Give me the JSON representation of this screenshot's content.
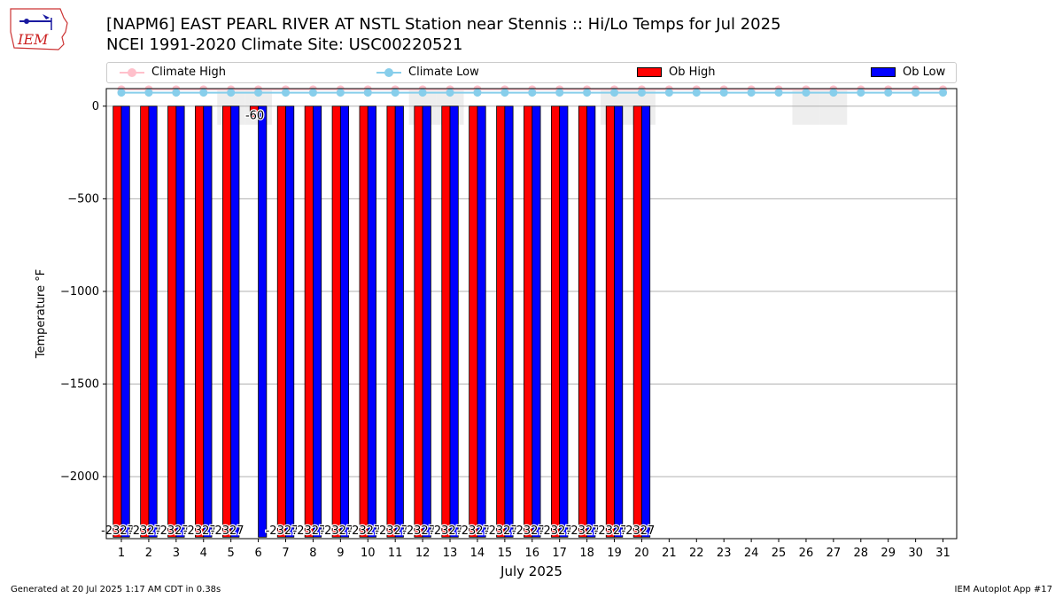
{
  "header": {
    "title_line1": "[NAPM6] EAST PEARL RIVER  AT NSTL Station near Stennis :: Hi/Lo Temps for Jul 2025",
    "title_line2": "NCEI 1991-2020 Climate Site: USC00220521",
    "logo_text": "IEM"
  },
  "legend": {
    "items": [
      {
        "label": "Climate High",
        "color": "#ffc0cb",
        "kind": "line"
      },
      {
        "label": "Climate Low",
        "color": "#87ceeb",
        "kind": "line"
      },
      {
        "label": "Ob High",
        "color": "#ff0000",
        "kind": "box"
      },
      {
        "label": "Ob Low",
        "color": "#0000ff",
        "kind": "box"
      }
    ]
  },
  "footer": {
    "left": "Generated at 20 Jul 2025 1:17 AM CDT in 0.38s",
    "right": "IEM Autoplot App #17"
  },
  "chart_data": {
    "type": "bar",
    "xlabel": "July 2025",
    "ylabel": "Temperature °F",
    "ylim": [
      -2335,
      95
    ],
    "yticks": [
      0,
      -500,
      -1000,
      -1500,
      -2000
    ],
    "ytick_labels": [
      "0",
      "−500",
      "−1000",
      "−1500",
      "−2000"
    ],
    "grid": true,
    "categories": [
      "1",
      "2",
      "3",
      "4",
      "5",
      "6",
      "7",
      "8",
      "9",
      "10",
      "11",
      "12",
      "13",
      "14",
      "15",
      "16",
      "17",
      "18",
      "19",
      "20",
      "21",
      "22",
      "23",
      "24",
      "25",
      "26",
      "27",
      "28",
      "29",
      "30",
      "31"
    ],
    "shaded_days": [
      5,
      6,
      12,
      13,
      19,
      20,
      26,
      27
    ],
    "series": [
      {
        "name": "Ob High",
        "color": "#ff0000",
        "values": [
          -2327,
          -2327,
          -2327,
          -2327,
          -2327,
          -60,
          -2327,
          -2327,
          -2327,
          -2327,
          -2327,
          -2327,
          -2327,
          -2327,
          -2327,
          -2327,
          -2327,
          -2327,
          -2327,
          -2327,
          null,
          null,
          null,
          null,
          null,
          null,
          null,
          null,
          null,
          null,
          null
        ]
      },
      {
        "name": "Ob Low",
        "color": "#0000ff",
        "values": [
          -2327,
          -2327,
          -2327,
          -2327,
          -2327,
          -2327,
          -2327,
          -2327,
          -2327,
          -2327,
          -2327,
          -2327,
          -2327,
          -2327,
          -2327,
          -2327,
          -2327,
          -2327,
          -2327,
          -2327,
          null,
          null,
          null,
          null,
          null,
          null,
          null,
          null,
          null,
          null,
          null
        ]
      },
      {
        "name": "Climate High",
        "color": "#ffc0cb",
        "values": [
          91,
          91,
          91,
          91,
          91,
          91,
          91,
          91,
          91,
          91,
          91,
          91,
          91,
          91,
          91,
          91,
          91,
          91,
          91,
          91,
          91,
          91,
          91,
          91,
          91,
          91,
          91,
          91,
          91,
          91,
          91
        ]
      },
      {
        "name": "Climate Low",
        "color": "#87ceeb",
        "values": [
          73,
          73,
          73,
          73,
          73,
          73,
          73,
          73,
          73,
          73,
          73,
          73,
          73,
          73,
          73,
          73,
          73,
          73,
          73,
          73,
          73,
          73,
          73,
          73,
          73,
          73,
          73,
          73,
          73,
          73,
          73
        ]
      }
    ],
    "bar_labels": [
      "-2327",
      "-2327",
      "-2327",
      "-2327",
      "-2327",
      "-60",
      "-2327",
      "-2327",
      "-2327",
      "-2327",
      "-2327",
      "-2327",
      "-2327",
      "-2327",
      "-2327",
      "-2327",
      "-2327",
      "-2327",
      "-2327",
      "-2327"
    ]
  }
}
